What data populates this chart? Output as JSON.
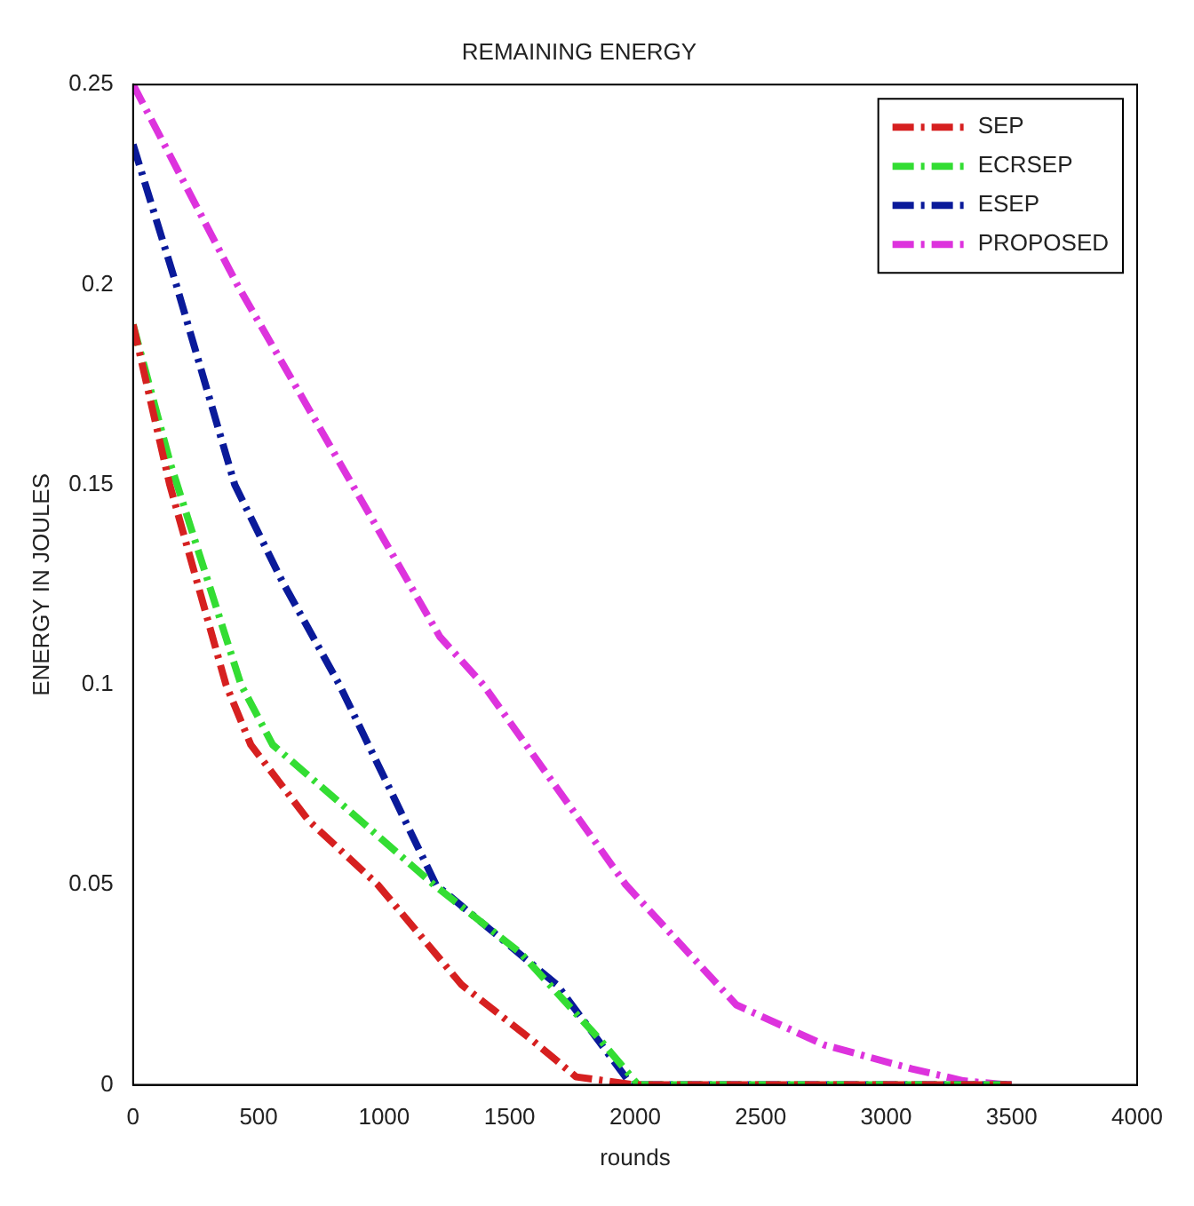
{
  "chart_data": {
    "type": "line",
    "title": "REMAINING ENERGY",
    "xlabel": "rounds",
    "ylabel": "ENERGY IN JOULES",
    "xlim": [
      0,
      4000
    ],
    "xticks": [
      0,
      500,
      1000,
      1500,
      2000,
      2500,
      3000,
      3500,
      4000
    ],
    "ylim": [
      0,
      0.25
    ],
    "yticks": [
      0,
      0.05,
      0.1,
      0.15,
      0.2,
      0.25
    ],
    "grid": false,
    "legend": "top right",
    "marker": "none",
    "line_style": "dashed",
    "series": [
      {
        "name": "SEP",
        "color": "#d62020",
        "x": [
          0,
          146,
          370,
          469,
          700,
          975,
          1309,
          1593,
          1765,
          2000,
          3500
        ],
        "values": [
          0.19,
          0.15,
          0.1,
          0.085,
          0.066,
          0.05,
          0.025,
          0.011,
          0.002,
          0,
          0
        ]
      },
      {
        "name": "ECRSEP",
        "color": "#33dd33",
        "x": [
          0,
          150,
          430,
          556,
          852,
          1198,
          1543,
          1864,
          2012,
          3500
        ],
        "values": [
          0.19,
          0.155,
          0.1,
          0.085,
          0.069,
          0.05,
          0.033,
          0.011,
          0,
          0
        ]
      },
      {
        "name": "ESEP",
        "color": "#0a1a9a",
        "x": [
          0,
          172,
          405,
          593,
          822,
          1207,
          1689,
          1985,
          3500
        ],
        "values": [
          0.235,
          0.2,
          0.15,
          0.126,
          0.1,
          0.05,
          0.025,
          0,
          0
        ]
      },
      {
        "name": "PROPOSED",
        "color": "#dd33dd",
        "x": [
          0,
          415,
          1222,
          1395,
          1963,
          2403,
          2753,
          3103,
          3308,
          3483
        ],
        "values": [
          0.25,
          0.2,
          0.112,
          0.1,
          0.05,
          0.02,
          0.01,
          0.004,
          0.001,
          0
        ]
      }
    ]
  }
}
